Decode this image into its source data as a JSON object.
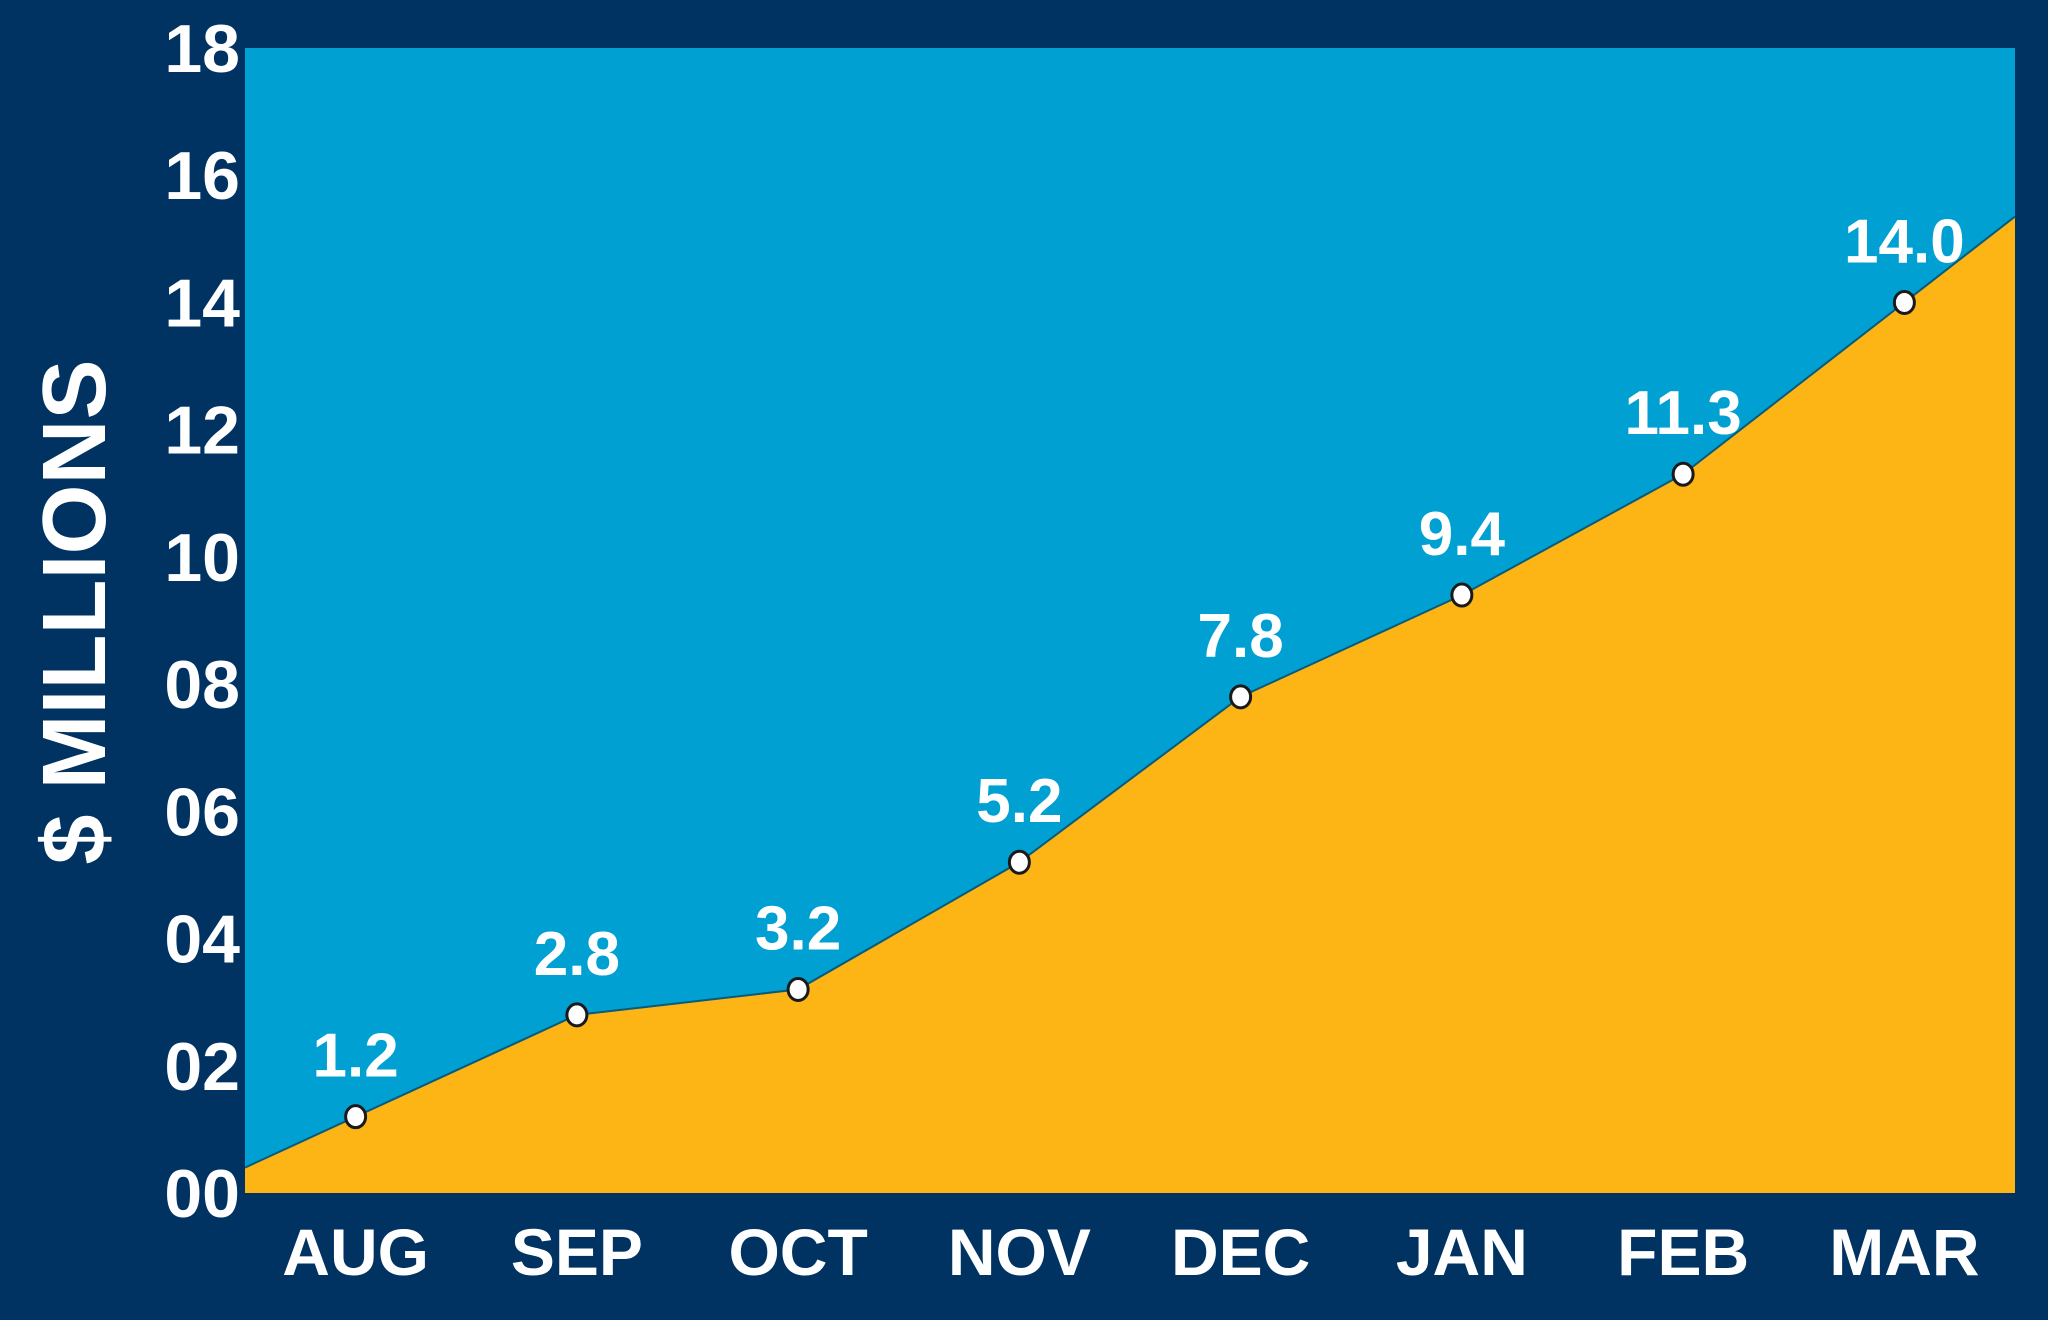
{
  "chart_data": {
    "type": "area",
    "categories": [
      "AUG",
      "SEP",
      "OCT",
      "NOV",
      "DEC",
      "JAN",
      "FEB",
      "MAR"
    ],
    "series": [
      {
        "values": [
          1.2,
          2.8,
          3.2,
          5.2,
          7.8,
          9.4,
          11.3,
          14.0
        ],
        "labels": [
          "1.2",
          "2.8",
          "3.2",
          "5.2",
          "7.8",
          "9.4",
          "11.3",
          "14.0"
        ]
      }
    ],
    "ylabel": "$ MILLIONS",
    "ylim": [
      0,
      18
    ],
    "yticks": [
      "00",
      "02",
      "04",
      "06",
      "08",
      "10",
      "12",
      "14",
      "16",
      "18"
    ],
    "grid": false,
    "legend": "none",
    "colors": {
      "frame": "#003262",
      "plot_background": "#00a0d2",
      "area_fill": "#fdb515",
      "text": "#ffffff"
    }
  }
}
